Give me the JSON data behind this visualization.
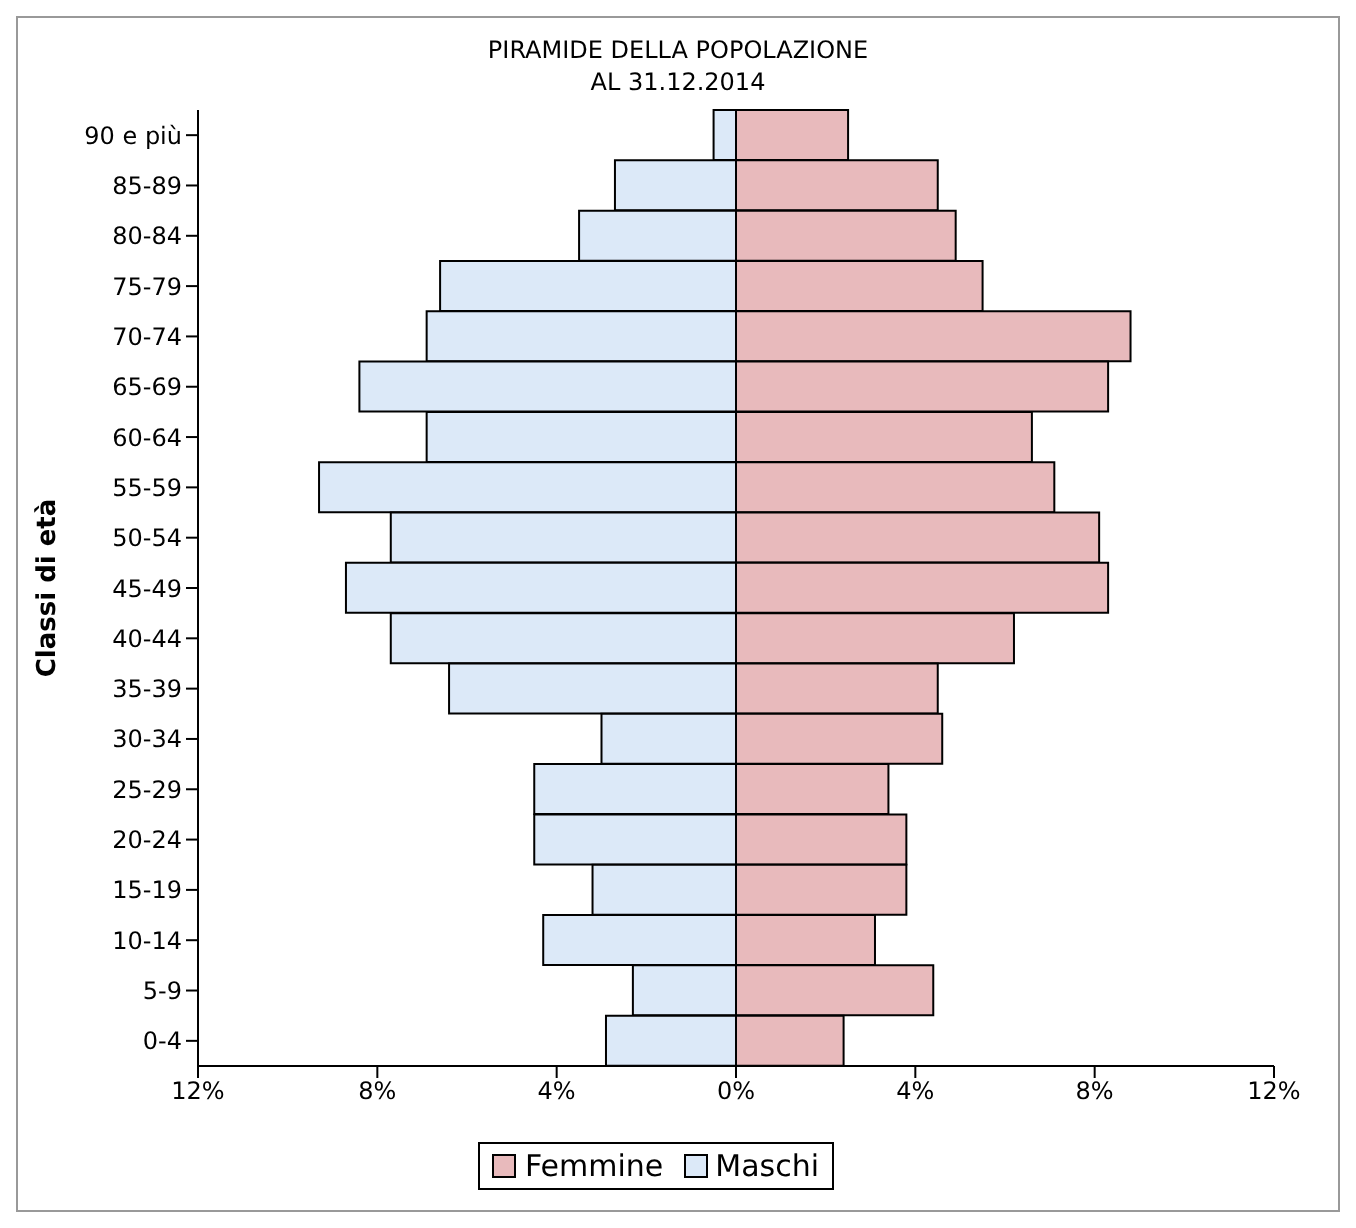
{
  "chart_data": {
    "type": "bar",
    "orientation": "horizontal",
    "stacked": true,
    "title": "PIRAMIDE DELLA POPOLAZIONE",
    "subtitle": "AL 31.12.2014",
    "ylabel": "Classi di età",
    "categories": [
      "90 e più",
      "85-89",
      "80-84",
      "75-79",
      "70-74",
      "65-69",
      "60-64",
      "55-59",
      "50-54",
      "45-49",
      "40-44",
      "35-39",
      "30-34",
      "25-29",
      "20-24",
      "15-19",
      "10-14",
      "5-9",
      "0-4"
    ],
    "series": [
      {
        "name": "Maschi",
        "color": "#dce9f8",
        "values": [
          -0.5,
          -2.7,
          -3.5,
          -6.6,
          -6.9,
          -8.4,
          -6.9,
          -9.3,
          -7.7,
          -8.7,
          -7.7,
          -6.4,
          -3.0,
          -4.5,
          -4.5,
          -3.2,
          -4.3,
          -2.3,
          -2.9
        ]
      },
      {
        "name": "Femmine",
        "color": "#e8babc",
        "values": [
          2.5,
          4.5,
          4.9,
          5.5,
          8.8,
          8.3,
          6.6,
          7.1,
          8.1,
          8.3,
          6.2,
          4.5,
          4.6,
          3.4,
          3.8,
          3.8,
          3.1,
          4.4,
          2.4
        ]
      }
    ],
    "xlim": [
      -12,
      12
    ],
    "xticks": [
      {
        "value": -12,
        "label": "12%"
      },
      {
        "value": -8,
        "label": "8%"
      },
      {
        "value": -4,
        "label": "4%"
      },
      {
        "value": 0,
        "label": "0%"
      },
      {
        "value": 4,
        "label": "4%"
      },
      {
        "value": 8,
        "label": "8%"
      },
      {
        "value": 12,
        "label": "12%"
      }
    ],
    "grid": false,
    "legend": "bottom"
  }
}
